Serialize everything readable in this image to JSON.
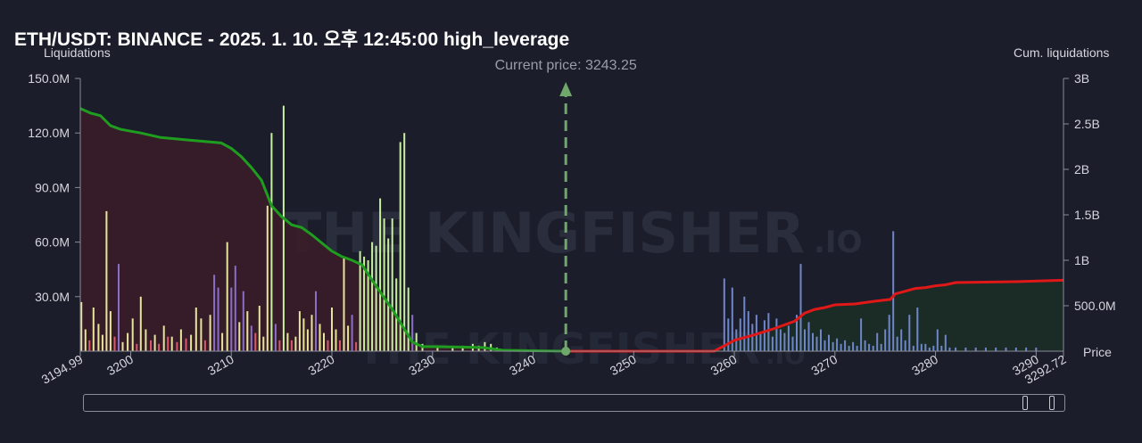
{
  "title": "ETH/USDT: BINANCE - 2025. 1. 10. 오후 12:45:00 high_leverage",
  "left_axis_title": "Liquidations",
  "right_axis_title": "Cum. liquidations",
  "x_axis_title": "Price",
  "current_price_label": "Current price: 3243.25",
  "watermark": {
    "text_main": "THE KINGFISHER",
    "text_suffix": ".IO"
  },
  "colors": {
    "background": "#1b1d2b",
    "long_cum_line": "#1f9d1f",
    "short_cum_line": "#e01818",
    "long_fill": "#3a1d28",
    "short_fill": "#1c2e26",
    "bar_yellow": "#e6e59a",
    "bar_green": "#c8f0a0",
    "bar_purple": "#8a6fc6",
    "bar_red": "#d85a6a",
    "bar_blue": "#6f86c8",
    "current_price": "#6fa86a"
  },
  "chart_data": {
    "type": "bar",
    "x_range": [
      3194.99,
      3292.72
    ],
    "y_left_range": [
      0,
      150000000
    ],
    "y_right_range": [
      0,
      3000000000
    ],
    "current_price": 3243.25,
    "x_tick_labels": [
      "3194.99",
      "3200",
      "3210",
      "3220",
      "3230",
      "3240",
      "3250",
      "3260",
      "3270",
      "3280",
      "3290",
      "3292.72"
    ],
    "x_tick_values": [
      3194.99,
      3200,
      3210,
      3220,
      3230,
      3240,
      3250,
      3260,
      3270,
      3280,
      3290,
      3292.72
    ],
    "y_left_tick_labels": [
      "30.0M",
      "60.0M",
      "90.0M",
      "120.0M",
      "150.0M"
    ],
    "y_left_tick_values": [
      30000000,
      60000000,
      90000000,
      120000000,
      150000000
    ],
    "y_right_tick_labels": [
      "500.0M",
      "1B",
      "1.5B",
      "2B",
      "2.5B",
      "3B"
    ],
    "y_right_tick_values": [
      500000000,
      1000000000,
      1500000000,
      2000000000,
      2500000000,
      3000000000
    ],
    "bars": [
      {
        "x": 3195.1,
        "y": 27000000,
        "c": "yellow"
      },
      {
        "x": 3195.5,
        "y": 12000000,
        "c": "yellow"
      },
      {
        "x": 3195.9,
        "y": 6000000,
        "c": "red"
      },
      {
        "x": 3196.3,
        "y": 24000000,
        "c": "yellow"
      },
      {
        "x": 3196.8,
        "y": 15000000,
        "c": "yellow"
      },
      {
        "x": 3197.2,
        "y": 9000000,
        "c": "yellow"
      },
      {
        "x": 3197.6,
        "y": 77000000,
        "c": "yellow"
      },
      {
        "x": 3198.0,
        "y": 22000000,
        "c": "yellow"
      },
      {
        "x": 3198.4,
        "y": 8000000,
        "c": "red"
      },
      {
        "x": 3198.8,
        "y": 48000000,
        "c": "purple"
      },
      {
        "x": 3199.2,
        "y": 5000000,
        "c": "yellow"
      },
      {
        "x": 3199.7,
        "y": 10000000,
        "c": "yellow"
      },
      {
        "x": 3200.2,
        "y": 18000000,
        "c": "yellow"
      },
      {
        "x": 3200.6,
        "y": 4000000,
        "c": "red"
      },
      {
        "x": 3201.0,
        "y": 30000000,
        "c": "yellow"
      },
      {
        "x": 3201.5,
        "y": 12000000,
        "c": "yellow"
      },
      {
        "x": 3202.0,
        "y": 6000000,
        "c": "red"
      },
      {
        "x": 3202.4,
        "y": 9000000,
        "c": "yellow"
      },
      {
        "x": 3202.8,
        "y": 4000000,
        "c": "red"
      },
      {
        "x": 3203.3,
        "y": 14000000,
        "c": "yellow"
      },
      {
        "x": 3203.7,
        "y": 8000000,
        "c": "red"
      },
      {
        "x": 3204.1,
        "y": 8000000,
        "c": "yellow"
      },
      {
        "x": 3204.6,
        "y": 5000000,
        "c": "red"
      },
      {
        "x": 3205.0,
        "y": 12000000,
        "c": "yellow"
      },
      {
        "x": 3205.5,
        "y": 7000000,
        "c": "red"
      },
      {
        "x": 3206.0,
        "y": 9000000,
        "c": "yellow"
      },
      {
        "x": 3206.5,
        "y": 24000000,
        "c": "yellow"
      },
      {
        "x": 3207.0,
        "y": 18000000,
        "c": "yellow"
      },
      {
        "x": 3207.4,
        "y": 6000000,
        "c": "red"
      },
      {
        "x": 3207.9,
        "y": 20000000,
        "c": "yellow"
      },
      {
        "x": 3208.3,
        "y": 42000000,
        "c": "purple"
      },
      {
        "x": 3208.7,
        "y": 35000000,
        "c": "purple"
      },
      {
        "x": 3209.1,
        "y": 10000000,
        "c": "yellow"
      },
      {
        "x": 3209.6,
        "y": 60000000,
        "c": "yellow"
      },
      {
        "x": 3210.0,
        "y": 35000000,
        "c": "purple"
      },
      {
        "x": 3210.4,
        "y": 47000000,
        "c": "purple"
      },
      {
        "x": 3210.8,
        "y": 16000000,
        "c": "yellow"
      },
      {
        "x": 3211.2,
        "y": 33000000,
        "c": "purple"
      },
      {
        "x": 3211.6,
        "y": 22000000,
        "c": "yellow"
      },
      {
        "x": 3212.0,
        "y": 14000000,
        "c": "purple"
      },
      {
        "x": 3212.4,
        "y": 10000000,
        "c": "red"
      },
      {
        "x": 3212.8,
        "y": 25000000,
        "c": "yellow"
      },
      {
        "x": 3213.2,
        "y": 8000000,
        "c": "yellow"
      },
      {
        "x": 3213.6,
        "y": 80000000,
        "c": "yellow"
      },
      {
        "x": 3214.0,
        "y": 120000000,
        "c": "green"
      },
      {
        "x": 3214.4,
        "y": 15000000,
        "c": "purple"
      },
      {
        "x": 3214.8,
        "y": 6000000,
        "c": "red"
      },
      {
        "x": 3215.2,
        "y": 135000000,
        "c": "green"
      },
      {
        "x": 3215.6,
        "y": 10000000,
        "c": "yellow"
      },
      {
        "x": 3216.0,
        "y": 6000000,
        "c": "red"
      },
      {
        "x": 3216.4,
        "y": 8000000,
        "c": "yellow"
      },
      {
        "x": 3216.8,
        "y": 22000000,
        "c": "yellow"
      },
      {
        "x": 3217.2,
        "y": 18000000,
        "c": "yellow"
      },
      {
        "x": 3217.6,
        "y": 12000000,
        "c": "yellow"
      },
      {
        "x": 3218.0,
        "y": 20000000,
        "c": "yellow"
      },
      {
        "x": 3218.4,
        "y": 33000000,
        "c": "purple"
      },
      {
        "x": 3218.8,
        "y": 15000000,
        "c": "yellow"
      },
      {
        "x": 3219.2,
        "y": 10000000,
        "c": "yellow"
      },
      {
        "x": 3219.6,
        "y": 6000000,
        "c": "red"
      },
      {
        "x": 3220.0,
        "y": 24000000,
        "c": "yellow"
      },
      {
        "x": 3220.4,
        "y": 12000000,
        "c": "yellow"
      },
      {
        "x": 3220.8,
        "y": 6000000,
        "c": "red"
      },
      {
        "x": 3221.2,
        "y": 52000000,
        "c": "yellow"
      },
      {
        "x": 3221.6,
        "y": 14000000,
        "c": "yellow"
      },
      {
        "x": 3222.0,
        "y": 20000000,
        "c": "purple"
      },
      {
        "x": 3222.4,
        "y": 5000000,
        "c": "red"
      },
      {
        "x": 3222.8,
        "y": 55000000,
        "c": "green"
      },
      {
        "x": 3223.2,
        "y": 52000000,
        "c": "green"
      },
      {
        "x": 3223.6,
        "y": 50000000,
        "c": "green"
      },
      {
        "x": 3224.0,
        "y": 60000000,
        "c": "green"
      },
      {
        "x": 3224.4,
        "y": 58000000,
        "c": "green"
      },
      {
        "x": 3224.8,
        "y": 84000000,
        "c": "green"
      },
      {
        "x": 3225.2,
        "y": 73000000,
        "c": "green"
      },
      {
        "x": 3225.6,
        "y": 62000000,
        "c": "green"
      },
      {
        "x": 3226.0,
        "y": 73000000,
        "c": "green"
      },
      {
        "x": 3226.4,
        "y": 40000000,
        "c": "green"
      },
      {
        "x": 3226.8,
        "y": 115000000,
        "c": "green"
      },
      {
        "x": 3227.2,
        "y": 120000000,
        "c": "green"
      },
      {
        "x": 3227.6,
        "y": 35000000,
        "c": "green"
      },
      {
        "x": 3228.0,
        "y": 20000000,
        "c": "purple"
      },
      {
        "x": 3228.4,
        "y": 10000000,
        "c": "green"
      },
      {
        "x": 3229.0,
        "y": 4000000,
        "c": "green"
      },
      {
        "x": 3230.5,
        "y": 2000000,
        "c": "green"
      },
      {
        "x": 3232.0,
        "y": 3000000,
        "c": "green"
      },
      {
        "x": 3233.0,
        "y": 3000000,
        "c": "green"
      },
      {
        "x": 3234.0,
        "y": 4000000,
        "c": "green"
      },
      {
        "x": 3234.6,
        "y": 3000000,
        "c": "green"
      },
      {
        "x": 3235.2,
        "y": 5000000,
        "c": "green"
      },
      {
        "x": 3235.8,
        "y": 4000000,
        "c": "green"
      },
      {
        "x": 3236.4,
        "y": 2000000,
        "c": "green"
      },
      {
        "x": 3259.0,
        "y": 40000000,
        "c": "blue"
      },
      {
        "x": 3259.4,
        "y": 18000000,
        "c": "blue"
      },
      {
        "x": 3259.8,
        "y": 35000000,
        "c": "blue"
      },
      {
        "x": 3260.2,
        "y": 12000000,
        "c": "blue"
      },
      {
        "x": 3260.6,
        "y": 18000000,
        "c": "blue"
      },
      {
        "x": 3261.0,
        "y": 30000000,
        "c": "blue"
      },
      {
        "x": 3261.4,
        "y": 22000000,
        "c": "blue"
      },
      {
        "x": 3261.8,
        "y": 15000000,
        "c": "blue"
      },
      {
        "x": 3262.2,
        "y": 20000000,
        "c": "blue"
      },
      {
        "x": 3262.6,
        "y": 10000000,
        "c": "blue"
      },
      {
        "x": 3263.0,
        "y": 17000000,
        "c": "blue"
      },
      {
        "x": 3263.4,
        "y": 21000000,
        "c": "blue"
      },
      {
        "x": 3263.8,
        "y": 8000000,
        "c": "blue"
      },
      {
        "x": 3264.2,
        "y": 18000000,
        "c": "blue"
      },
      {
        "x": 3264.6,
        "y": 12000000,
        "c": "blue"
      },
      {
        "x": 3265.0,
        "y": 10000000,
        "c": "blue"
      },
      {
        "x": 3265.4,
        "y": 14000000,
        "c": "blue"
      },
      {
        "x": 3265.8,
        "y": 8000000,
        "c": "blue"
      },
      {
        "x": 3266.2,
        "y": 20000000,
        "c": "blue"
      },
      {
        "x": 3266.6,
        "y": 48000000,
        "c": "blue"
      },
      {
        "x": 3267.0,
        "y": 12000000,
        "c": "blue"
      },
      {
        "x": 3267.4,
        "y": 16000000,
        "c": "blue"
      },
      {
        "x": 3267.8,
        "y": 10000000,
        "c": "blue"
      },
      {
        "x": 3268.2,
        "y": 8000000,
        "c": "blue"
      },
      {
        "x": 3268.6,
        "y": 12000000,
        "c": "blue"
      },
      {
        "x": 3269.0,
        "y": 6000000,
        "c": "blue"
      },
      {
        "x": 3269.4,
        "y": 9000000,
        "c": "blue"
      },
      {
        "x": 3269.8,
        "y": 5000000,
        "c": "blue"
      },
      {
        "x": 3270.2,
        "y": 7000000,
        "c": "blue"
      },
      {
        "x": 3270.6,
        "y": 4000000,
        "c": "blue"
      },
      {
        "x": 3271.0,
        "y": 6000000,
        "c": "blue"
      },
      {
        "x": 3271.4,
        "y": 3000000,
        "c": "blue"
      },
      {
        "x": 3271.8,
        "y": 5000000,
        "c": "blue"
      },
      {
        "x": 3272.2,
        "y": 3000000,
        "c": "blue"
      },
      {
        "x": 3272.6,
        "y": 18000000,
        "c": "blue"
      },
      {
        "x": 3273.0,
        "y": 6000000,
        "c": "blue"
      },
      {
        "x": 3273.4,
        "y": 4000000,
        "c": "blue"
      },
      {
        "x": 3273.8,
        "y": 3000000,
        "c": "blue"
      },
      {
        "x": 3274.2,
        "y": 10000000,
        "c": "blue"
      },
      {
        "x": 3274.6,
        "y": 4000000,
        "c": "blue"
      },
      {
        "x": 3275.0,
        "y": 12000000,
        "c": "blue"
      },
      {
        "x": 3275.4,
        "y": 20000000,
        "c": "blue"
      },
      {
        "x": 3275.8,
        "y": 66000000,
        "c": "blue"
      },
      {
        "x": 3276.2,
        "y": 8000000,
        "c": "blue"
      },
      {
        "x": 3276.6,
        "y": 12000000,
        "c": "blue"
      },
      {
        "x": 3277.0,
        "y": 6000000,
        "c": "blue"
      },
      {
        "x": 3277.4,
        "y": 20000000,
        "c": "blue"
      },
      {
        "x": 3277.8,
        "y": 3000000,
        "c": "blue"
      },
      {
        "x": 3278.2,
        "y": 24000000,
        "c": "blue"
      },
      {
        "x": 3278.6,
        "y": 4000000,
        "c": "blue"
      },
      {
        "x": 3279.0,
        "y": 4000000,
        "c": "blue"
      },
      {
        "x": 3279.4,
        "y": 2000000,
        "c": "blue"
      },
      {
        "x": 3279.8,
        "y": 3000000,
        "c": "blue"
      },
      {
        "x": 3280.2,
        "y": 12000000,
        "c": "blue"
      },
      {
        "x": 3280.6,
        "y": 3000000,
        "c": "blue"
      },
      {
        "x": 3281.0,
        "y": 9000000,
        "c": "blue"
      },
      {
        "x": 3281.4,
        "y": 2000000,
        "c": "blue"
      },
      {
        "x": 3282.0,
        "y": 2000000,
        "c": "blue"
      },
      {
        "x": 3283.0,
        "y": 2000000,
        "c": "blue"
      },
      {
        "x": 3284.0,
        "y": 2000000,
        "c": "blue"
      },
      {
        "x": 3285.0,
        "y": 2000000,
        "c": "blue"
      },
      {
        "x": 3286.0,
        "y": 2000000,
        "c": "blue"
      },
      {
        "x": 3287.0,
        "y": 2000000,
        "c": "blue"
      },
      {
        "x": 3288.0,
        "y": 2000000,
        "c": "blue"
      },
      {
        "x": 3289.0,
        "y": 2000000,
        "c": "blue"
      },
      {
        "x": 3290.0,
        "y": 2000000,
        "c": "blue"
      }
    ],
    "cum_long": [
      [
        3194.99,
        2670000000
      ],
      [
        3196.0,
        2620000000
      ],
      [
        3197.0,
        2590000000
      ],
      [
        3198.0,
        2480000000
      ],
      [
        3199.0,
        2440000000
      ],
      [
        3200.0,
        2420000000
      ],
      [
        3201.0,
        2400000000
      ],
      [
        3203.0,
        2350000000
      ],
      [
        3206.0,
        2320000000
      ],
      [
        3209.0,
        2290000000
      ],
      [
        3210.0,
        2230000000
      ],
      [
        3211.0,
        2140000000
      ],
      [
        3212.0,
        2020000000
      ],
      [
        3213.0,
        1880000000
      ],
      [
        3214.0,
        1600000000
      ],
      [
        3215.0,
        1480000000
      ],
      [
        3216.0,
        1390000000
      ],
      [
        3217.0,
        1360000000
      ],
      [
        3218.0,
        1280000000
      ],
      [
        3219.0,
        1190000000
      ],
      [
        3220.0,
        1100000000
      ],
      [
        3221.0,
        1040000000
      ],
      [
        3222.0,
        1000000000
      ],
      [
        3223.0,
        950000000
      ],
      [
        3224.0,
        780000000
      ],
      [
        3225.0,
        620000000
      ],
      [
        3226.0,
        460000000
      ],
      [
        3227.0,
        280000000
      ],
      [
        3228.0,
        100000000
      ],
      [
        3229.0,
        50000000
      ],
      [
        3230.0,
        50000000
      ],
      [
        3233.0,
        45000000
      ],
      [
        3235.0,
        40000000
      ],
      [
        3237.0,
        10000000
      ],
      [
        3243.25,
        0
      ]
    ],
    "cum_short": [
      [
        3243.25,
        0
      ],
      [
        3258.0,
        0
      ],
      [
        3259.0,
        60000000
      ],
      [
        3260.0,
        120000000
      ],
      [
        3262.0,
        180000000
      ],
      [
        3264.0,
        250000000
      ],
      [
        3266.0,
        330000000
      ],
      [
        3267.0,
        420000000
      ],
      [
        3268.0,
        460000000
      ],
      [
        3269.0,
        480000000
      ],
      [
        3270.0,
        510000000
      ],
      [
        3272.0,
        520000000
      ],
      [
        3274.0,
        550000000
      ],
      [
        3275.5,
        570000000
      ],
      [
        3276.0,
        630000000
      ],
      [
        3277.0,
        660000000
      ],
      [
        3278.0,
        690000000
      ],
      [
        3279.0,
        700000000
      ],
      [
        3280.0,
        720000000
      ],
      [
        3281.0,
        730000000
      ],
      [
        3282.0,
        755000000
      ],
      [
        3285.0,
        760000000
      ],
      [
        3288.0,
        765000000
      ],
      [
        3292.72,
        780000000
      ]
    ]
  }
}
